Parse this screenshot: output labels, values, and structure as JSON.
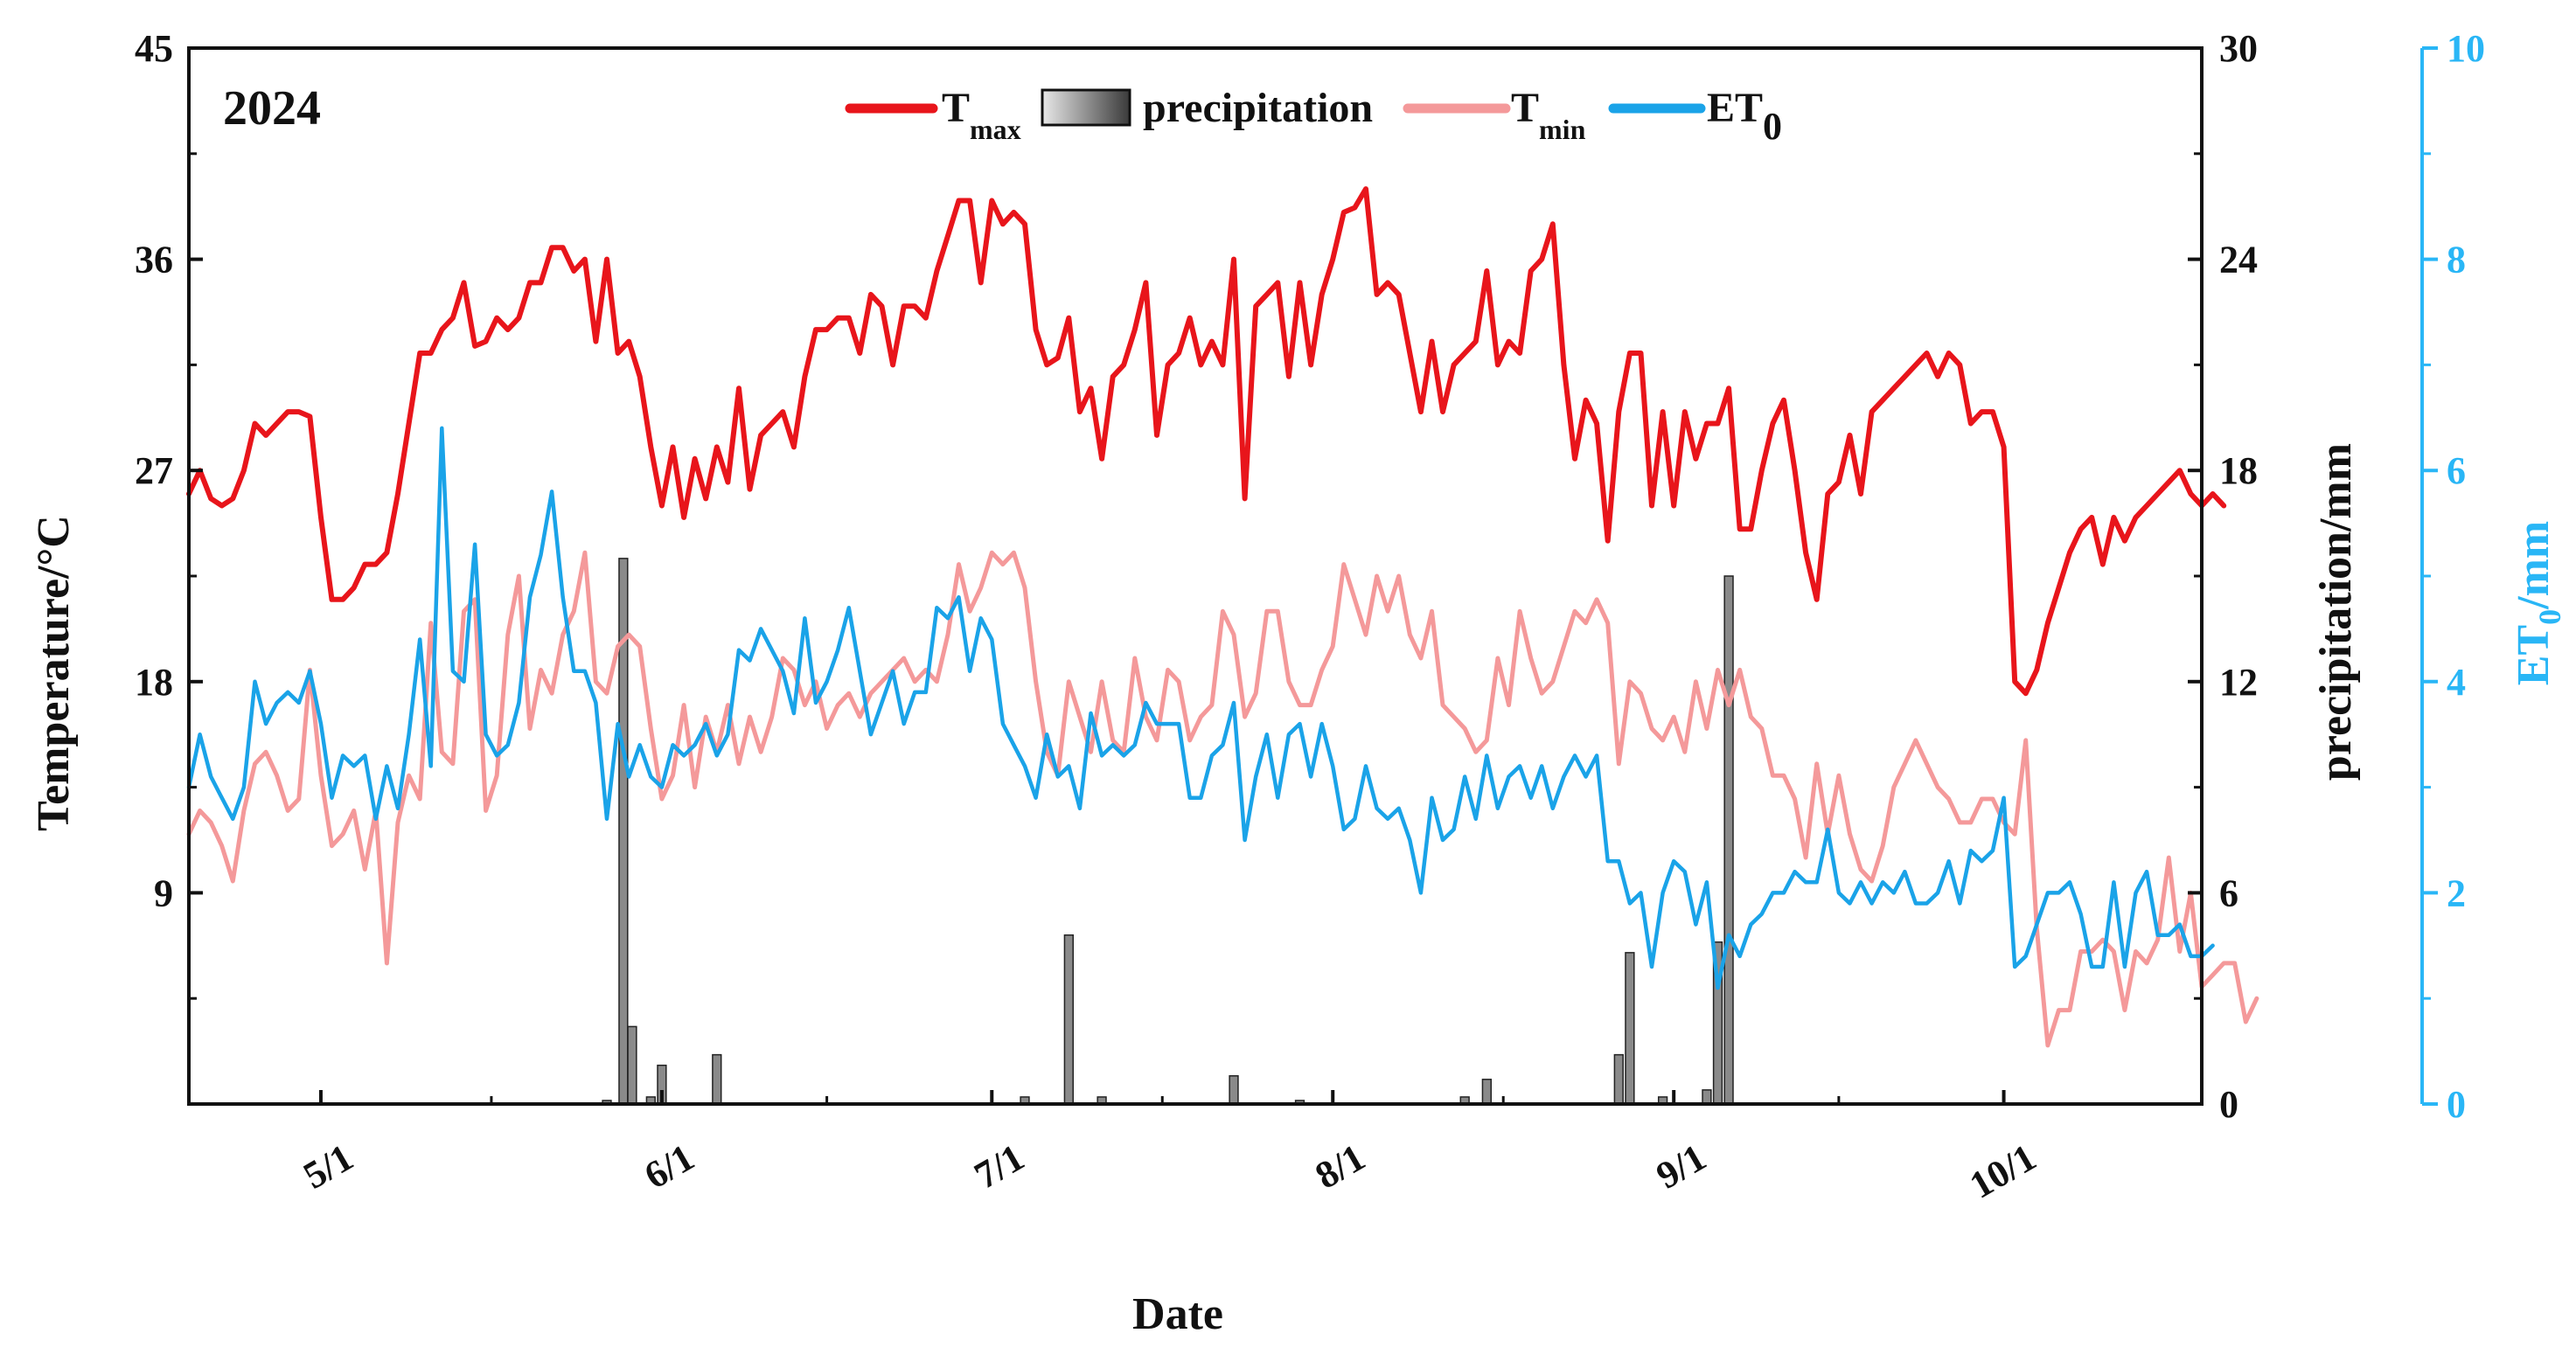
{
  "chart_data": {
    "type": "line+bar",
    "title": "2024",
    "xlabel": "Date",
    "ylabel_left": "Temperature/°C",
    "ylabel_right": "precipitation/mm",
    "ylabel_right2": "ET0/mm",
    "ylabel_right2_main": "ET",
    "ylabel_right2_sub": "0",
    "ylabel_right2_unit": "/mm",
    "x_range_day": [
      0,
      183
    ],
    "x_start": "2024-04-19",
    "x_ticks": [
      {
        "label": "5/1",
        "day": 12
      },
      {
        "label": "6/1",
        "day": 43
      },
      {
        "label": "7/1",
        "day": 73
      },
      {
        "label": "8/1",
        "day": 104
      },
      {
        "label": "9/1",
        "day": 135
      },
      {
        "label": "10/1",
        "day": 165
      }
    ],
    "ylim_left": [
      0,
      45
    ],
    "yticks_left": [
      "9",
      "18",
      "27",
      "36",
      "45"
    ],
    "ylim_right": [
      0,
      30
    ],
    "yticks_right": [
      "0",
      "6",
      "12",
      "18",
      "24",
      "30"
    ],
    "ylim_right2": [
      0,
      10
    ],
    "yticks_right2": [
      "0",
      "2",
      "4",
      "6",
      "8",
      "10"
    ],
    "colors": {
      "tmax": "#e8151b",
      "tmin": "#f4999a",
      "et0": "#1aa3e8",
      "precip_fill": "#8a8a8a",
      "right2_axis": "#29b6f6",
      "axis": "#111111"
    },
    "legend": [
      {
        "key": "tmax",
        "main": "T",
        "sub": "max"
      },
      {
        "key": "precip",
        "main": "precipitation",
        "sub": ""
      },
      {
        "key": "tmin",
        "main": "T",
        "sub": "min"
      },
      {
        "key": "et0",
        "main": "ET",
        "sub": "0"
      }
    ],
    "series": [
      {
        "name": "Tmax",
        "axis": "left",
        "values": [
          26,
          27,
          25.8,
          25.5,
          25.8,
          27,
          29,
          28.5,
          29,
          29.5,
          29.5,
          29.3,
          25,
          21.5,
          21.5,
          22,
          23,
          23,
          23.5,
          26,
          29,
          32,
          32,
          33,
          33.5,
          35,
          32.3,
          32.5,
          33.5,
          33,
          33.5,
          35,
          35,
          36.5,
          36.5,
          35.5,
          36,
          32.5,
          36,
          32,
          32.5,
          31,
          28,
          25.5,
          28,
          25,
          27.5,
          25.8,
          28,
          26.5,
          30.5,
          26.2,
          28.5,
          29,
          29.5,
          28,
          31,
          33,
          33,
          33.5,
          33.5,
          32,
          34.5,
          34,
          31.5,
          34,
          34,
          33.5,
          35.5,
          37,
          38.5,
          38.5,
          35,
          38.5,
          37.5,
          38,
          37.5,
          33,
          31.5,
          31.8,
          33.5,
          29.5,
          30.5,
          27.5,
          31,
          31.5,
          33,
          35,
          28.5,
          31.5,
          32,
          33.5,
          31.5,
          32.5,
          31.5,
          36,
          25.8,
          34,
          34.5,
          35,
          31,
          35,
          31.5,
          34.5,
          36,
          38,
          38.2,
          39,
          34.5,
          35,
          34.5,
          32,
          29.5,
          32.5,
          29.5,
          31.5,
          32,
          32.5,
          35.5,
          31.5,
          32.5,
          32,
          35.5,
          36,
          37.5,
          31.5,
          27.5,
          30,
          29,
          24,
          29.5,
          32,
          32,
          25.5,
          29.5,
          25.5,
          29.5,
          27.5,
          29,
          29,
          30.5,
          24.5,
          24.5,
          27,
          29,
          30,
          27,
          23.5,
          21.5,
          26,
          26.5,
          28.5,
          26,
          29.5,
          30,
          30.5,
          31,
          31.5,
          32,
          31,
          32,
          31.5,
          29,
          29.5,
          29.5,
          28,
          18,
          17.5,
          18.5,
          20.5,
          22,
          23.5,
          24.5,
          25,
          23,
          25,
          24,
          25,
          25.5,
          26,
          26.5,
          27,
          26,
          25.5,
          26,
          25.5
        ]
      },
      {
        "name": "Tmin",
        "axis": "left",
        "values": [
          11.5,
          12.5,
          12,
          11,
          9.5,
          12.5,
          14.5,
          15,
          14,
          12.5,
          13,
          18.5,
          14,
          11,
          11.5,
          12.5,
          10,
          12.5,
          6,
          12,
          14,
          13,
          20.5,
          15,
          14.5,
          21,
          21.5,
          12.5,
          14,
          20,
          22.5,
          16,
          18.5,
          17.5,
          20,
          21,
          23.5,
          18,
          17.5,
          19.5,
          20,
          19.5,
          16,
          13,
          14,
          17,
          13.5,
          16.5,
          15,
          17,
          14.5,
          16.5,
          15,
          16.5,
          19,
          18.5,
          17,
          18,
          16,
          17,
          17.5,
          16.5,
          17.5,
          18,
          18.5,
          19,
          18,
          18.5,
          18,
          20,
          23,
          21,
          22,
          23.5,
          23,
          23.5,
          22,
          18,
          15,
          14,
          18,
          16.5,
          15,
          18,
          15.5,
          15,
          19,
          16.5,
          15.5,
          18.5,
          18,
          15.5,
          16.5,
          17,
          21,
          20,
          16.5,
          17.5,
          21,
          21,
          18,
          17,
          17,
          18.5,
          19.5,
          23,
          21.5,
          20,
          22.5,
          21,
          22.5,
          20,
          19,
          21,
          17,
          16.5,
          16,
          15,
          15.5,
          19,
          17,
          21,
          19,
          17.5,
          18,
          19.5,
          21,
          20.5,
          21.5,
          20.5,
          14.5,
          18,
          17.5,
          16,
          15.5,
          16.5,
          15,
          18,
          16,
          18.5,
          17,
          18.5,
          16.5,
          16,
          14,
          14,
          13,
          10.5,
          14.5,
          11.5,
          14,
          11.5,
          10,
          9.5,
          11,
          13.5,
          14.5,
          15.5,
          14.5,
          13.5,
          13,
          12,
          12,
          13,
          13,
          12,
          11.5,
          15.5,
          7.5,
          2.5,
          4,
          4,
          6.5,
          6.5,
          7,
          6.5,
          4,
          6.5,
          6,
          7,
          10.5,
          6.5,
          9,
          5,
          5.5,
          6,
          6,
          3.5,
          4.5
        ]
      },
      {
        "name": "ET0",
        "axis": "right2",
        "values": [
          3,
          3.5,
          3.1,
          2.9,
          2.7,
          3,
          4,
          3.6,
          3.8,
          3.9,
          3.8,
          4.1,
          3.6,
          2.9,
          3.3,
          3.2,
          3.3,
          2.7,
          3.2,
          2.8,
          3.5,
          4.4,
          3.2,
          6.4,
          4.1,
          4,
          5.3,
          3.5,
          3.3,
          3.4,
          3.8,
          4.8,
          5.2,
          5.8,
          4.8,
          4.1,
          4.1,
          3.8,
          2.7,
          3.6,
          3.1,
          3.4,
          3.1,
          3,
          3.4,
          3.3,
          3.4,
          3.6,
          3.3,
          3.5,
          4.3,
          4.2,
          4.5,
          4.3,
          4.1,
          3.7,
          4.6,
          3.8,
          4,
          4.3,
          4.7,
          4.1,
          3.5,
          3.8,
          4.1,
          3.6,
          3.9,
          3.9,
          4.7,
          4.6,
          4.8,
          4.1,
          4.6,
          4.4,
          3.6,
          3.4,
          3.2,
          2.9,
          3.5,
          3.1,
          3.2,
          2.8,
          3.7,
          3.3,
          3.4,
          3.3,
          3.4,
          3.8,
          3.6,
          3.6,
          3.6,
          2.9,
          2.9,
          3.3,
          3.4,
          3.8,
          2.5,
          3.1,
          3.5,
          2.9,
          3.5,
          3.6,
          3.1,
          3.6,
          3.2,
          2.6,
          2.7,
          3.2,
          2.8,
          2.7,
          2.8,
          2.5,
          2,
          2.9,
          2.5,
          2.6,
          3.1,
          2.7,
          3.3,
          2.8,
          3.1,
          3.2,
          2.9,
          3.2,
          2.8,
          3.1,
          3.3,
          3.1,
          3.3,
          2.3,
          2.3,
          1.9,
          2,
          1.3,
          2.0,
          2.3,
          2.2,
          1.7,
          2.1,
          1.1,
          1.6,
          1.4,
          1.7,
          1.8,
          2,
          2,
          2.2,
          2.1,
          2.1,
          2.6,
          2,
          1.9,
          2.1,
          1.9,
          2.1,
          2.0,
          2.2,
          1.9,
          1.9,
          2.0,
          2.3,
          1.9,
          2.4,
          2.3,
          2.4,
          2.9,
          1.3,
          1.4,
          1.7,
          2,
          2.0,
          2.1,
          1.8,
          1.3,
          1.3,
          2.1,
          1.3,
          2.0,
          2.2,
          1.6,
          1.6,
          1.7,
          1.4,
          1.4,
          1.5
        ]
      }
    ],
    "precipitation_bars": [
      {
        "day": 38,
        "value": 0.1
      },
      {
        "day": 39.5,
        "value": 15.5
      },
      {
        "day": 40.3,
        "value": 2.2
      },
      {
        "day": 42,
        "value": 0.2
      },
      {
        "day": 43,
        "value": 1.1
      },
      {
        "day": 48,
        "value": 1.4
      },
      {
        "day": 76,
        "value": 0.2
      },
      {
        "day": 80,
        "value": 4.8
      },
      {
        "day": 83,
        "value": 0.2
      },
      {
        "day": 95,
        "value": 0.8
      },
      {
        "day": 101,
        "value": 0.1
      },
      {
        "day": 116,
        "value": 0.2
      },
      {
        "day": 118,
        "value": 0.7
      },
      {
        "day": 130,
        "value": 1.4
      },
      {
        "day": 131,
        "value": 4.3
      },
      {
        "day": 134,
        "value": 0.2
      },
      {
        "day": 138,
        "value": 0.4
      },
      {
        "day": 139,
        "value": 4.6
      },
      {
        "day": 140,
        "value": 15
      }
    ]
  }
}
